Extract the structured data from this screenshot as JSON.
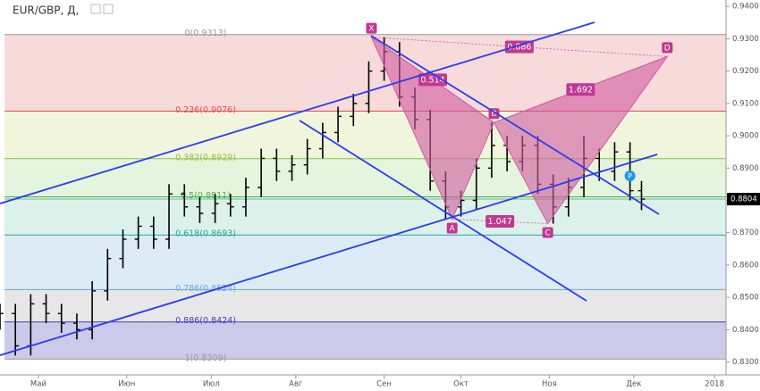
{
  "chart_data": {
    "type": "ohlc",
    "title": "EUR/GBP, Д,",
    "x": [
      -10,
      -6,
      -2,
      2,
      6,
      10,
      14,
      18,
      22,
      26,
      30,
      34,
      38,
      42,
      46,
      50,
      54,
      58,
      62,
      66,
      70,
      74,
      78,
      82,
      86,
      90,
      94,
      98,
      102,
      106,
      110,
      114,
      118,
      122,
      126,
      130,
      134,
      138,
      142,
      146,
      150,
      154,
      157
    ],
    "open": [
      0.843,
      0.845,
      0.835,
      0.848,
      0.845,
      0.842,
      0.84,
      0.852,
      0.862,
      0.868,
      0.872,
      0.868,
      0.882,
      0.878,
      0.876,
      0.879,
      0.878,
      0.884,
      0.893,
      0.889,
      0.891,
      0.896,
      0.901,
      0.906,
      0.91,
      0.92,
      0.926,
      0.912,
      0.905,
      0.886,
      0.878,
      0.88,
      0.89,
      0.897,
      0.892,
      0.897,
      0.885,
      0.878,
      0.884,
      0.893,
      0.889,
      0.895,
      0.883
    ],
    "high": [
      0.848,
      0.848,
      0.851,
      0.851,
      0.848,
      0.845,
      0.855,
      0.865,
      0.871,
      0.875,
      0.875,
      0.885,
      0.885,
      0.881,
      0.882,
      0.882,
      0.887,
      0.896,
      0.896,
      0.894,
      0.899,
      0.904,
      0.909,
      0.913,
      0.923,
      0.9305,
      0.929,
      0.915,
      0.908,
      0.889,
      0.883,
      0.893,
      0.9041,
      0.9,
      0.9,
      0.9,
      0.888,
      0.887,
      0.9,
      0.896,
      0.898,
      0.898,
      0.886
    ],
    "low": [
      0.84,
      0.832,
      0.832,
      0.842,
      0.839,
      0.837,
      0.837,
      0.849,
      0.859,
      0.865,
      0.865,
      0.865,
      0.875,
      0.873,
      0.873,
      0.875,
      0.875,
      0.881,
      0.886,
      0.886,
      0.888,
      0.893,
      0.898,
      0.903,
      0.907,
      0.917,
      0.909,
      0.902,
      0.883,
      0.8742,
      0.875,
      0.877,
      0.887,
      0.889,
      0.889,
      0.882,
      0.8728,
      0.875,
      0.881,
      0.886,
      0.886,
      0.88,
      0.877
    ],
    "close": [
      0.845,
      0.835,
      0.848,
      0.845,
      0.842,
      0.84,
      0.852,
      0.862,
      0.868,
      0.872,
      0.868,
      0.882,
      0.878,
      0.876,
      0.879,
      0.878,
      0.884,
      0.893,
      0.889,
      0.891,
      0.896,
      0.901,
      0.906,
      0.91,
      0.92,
      0.926,
      0.912,
      0.905,
      0.886,
      0.878,
      0.88,
      0.89,
      0.897,
      0.892,
      0.897,
      0.885,
      0.878,
      0.884,
      0.893,
      0.889,
      0.895,
      0.883,
      0.8804
    ],
    "color": "#000000",
    "xlim": [
      -10,
      179
    ],
    "ylim": [
      0.826,
      0.942
    ],
    "xticks": [
      {
        "value": 0,
        "label": "Май"
      },
      {
        "value": 23,
        "label": "Июн"
      },
      {
        "value": 45,
        "label": "Июл"
      },
      {
        "value": 67,
        "label": "Авг"
      },
      {
        "value": 90,
        "label": "Сен"
      },
      {
        "value": 110,
        "label": "Окт"
      },
      {
        "value": 133,
        "label": "Ноя"
      },
      {
        "value": 155,
        "label": "Дек"
      },
      {
        "value": 176,
        "label": "2018"
      }
    ],
    "yticks": [
      {
        "value": 0.83,
        "label": "0.8300"
      },
      {
        "value": 0.84,
        "label": "0.8400"
      },
      {
        "value": 0.85,
        "label": "0.8500"
      },
      {
        "value": 0.86,
        "label": "0.8600"
      },
      {
        "value": 0.87,
        "label": "0.8700"
      },
      {
        "value": 0.88,
        "label": "0.8800"
      },
      {
        "value": 0.89,
        "label": "0.8900"
      },
      {
        "value": 0.9,
        "label": "0.9000"
      },
      {
        "value": 0.91,
        "label": "0.9100"
      },
      {
        "value": 0.92,
        "label": "0.9200"
      },
      {
        "value": 0.93,
        "label": "0.9300"
      },
      {
        "value": 0.94,
        "label": "0.9400"
      }
    ],
    "last_price": 0.8804,
    "fib": {
      "levels": [
        {
          "value": 0.9313,
          "label": "0(0.9313)",
          "color": "#999999"
        },
        {
          "value": 0.9076,
          "label": "0.236(0.9076)",
          "color": "#e0504a"
        },
        {
          "value": 0.8929,
          "label": "0.382(0.8929)",
          "color": "#8bc34a"
        },
        {
          "value": 0.8811,
          "label": "0.5(0.8811)",
          "color": "#4caf50"
        },
        {
          "value": 0.8693,
          "label": "0.618(0.8693)",
          "color": "#26a69a"
        },
        {
          "value": 0.8524,
          "label": "0.786(0.8524)",
          "color": "#6fa8dc"
        },
        {
          "value": 0.8424,
          "label": "0.886(0.8424)",
          "color": "#3f3fbf"
        },
        {
          "value": 0.8309,
          "label": "1(0.8309)",
          "color": "#999999"
        }
      ],
      "fills": [
        "#f6d3d3",
        "#eef3d6",
        "#e0f2d6",
        "#d7efe8",
        "#d6e8f4",
        "#e3e3e3",
        "#c3c1e6"
      ]
    },
    "pattern": {
      "color": "#d05aa0",
      "points": [
        {
          "label": "X",
          "x": 86.7,
          "y": 0.9305
        },
        {
          "label": "A",
          "x": 107.7,
          "y": 0.8742
        },
        {
          "label": "B",
          "x": 118.6,
          "y": 0.9041
        },
        {
          "label": "C",
          "x": 132.6,
          "y": 0.8728
        },
        {
          "label": "D",
          "x": 163.7,
          "y": 0.9245
        }
      ],
      "ratios": [
        0.514,
        0.886,
        1.692,
        1.047
      ]
    },
    "marker": {
      "label": "P",
      "x": 154,
      "y": 0.8876
    }
  }
}
